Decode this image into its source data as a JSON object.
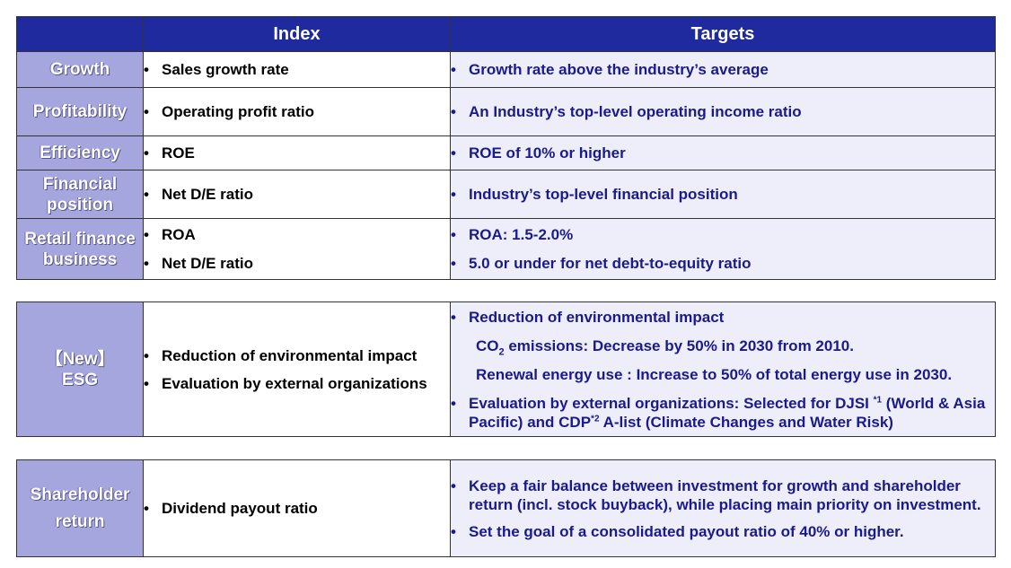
{
  "header": {
    "index": "Index",
    "targets": "Targets"
  },
  "bullet": "•",
  "rows": [
    {
      "category": [
        "Growth"
      ],
      "index": [
        "Sales growth rate"
      ],
      "targets": [
        "Growth rate above the industry’s average"
      ]
    },
    {
      "category": [
        "Profitability"
      ],
      "index": [
        "Operating profit ratio"
      ],
      "targets": [
        "An Industry’s top-level operating income ratio"
      ]
    },
    {
      "category": [
        "Efficiency"
      ],
      "index": [
        "ROE"
      ],
      "targets": [
        "ROE of 10% or higher"
      ]
    },
    {
      "category": [
        "Financial",
        "position"
      ],
      "index": [
        "Net D/E ratio"
      ],
      "targets": [
        "Industry’s top-level financial position"
      ]
    },
    {
      "category": [
        "Retail finance",
        "business"
      ],
      "index": [
        "ROA",
        "Net D/E ratio"
      ],
      "targets": [
        "ROA: 1.5-2.0%",
        "5.0 or under for net debt-to-equity ratio"
      ]
    }
  ],
  "esg": {
    "category": [
      "【New】",
      "ESG"
    ],
    "index": [
      "Reduction of environmental impact",
      "Evaluation by external organizations"
    ],
    "target1": "Reduction of environmental impact",
    "co2_prefix": "CO",
    "co2_sub": "2",
    "co2_rest": " emissions: Decrease by 50% in 2030 from 2010.",
    "renewal": "Renewal energy use : Increase to 50% of total energy use in 2030.",
    "eval_a": "Evaluation by external organizations:  Selected for DJSI ",
    "eval_sup1": "*1",
    "eval_b": " (World & Asia Pacific) and CDP",
    "eval_sup2": "*2",
    "eval_c": " A-list (Climate Changes and Water Risk)"
  },
  "shareholder": {
    "category": [
      "Shareholder",
      "return"
    ],
    "index": "Dividend payout ratio",
    "targets": [
      "Keep a fair balance between investment for growth and shareholder return (incl. stock buyback), while placing main priority on investment.",
      "Set the goal of a consolidated payout ratio of 40% or higher."
    ]
  }
}
